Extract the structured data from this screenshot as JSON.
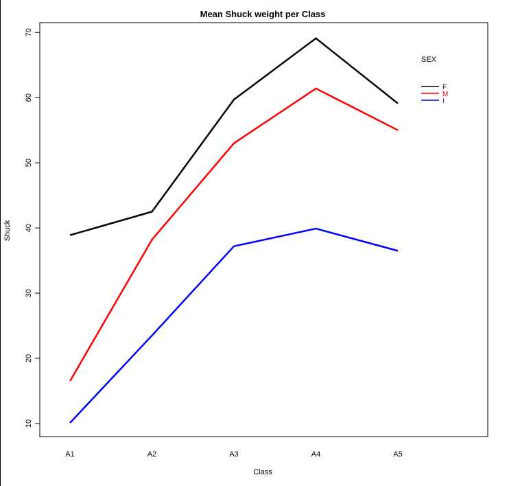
{
  "chart_data": {
    "type": "line",
    "title": "Mean Shuck weight per Class",
    "xlabel": "Class",
    "ylabel": "Shuck",
    "categories": [
      "A1",
      "A2",
      "A3",
      "A4",
      "A5"
    ],
    "ylim": [
      8,
      71.5
    ],
    "yticks": [
      10,
      20,
      30,
      40,
      50,
      60,
      70
    ],
    "grid": false,
    "legend": {
      "title": "SEX",
      "position": "top-right"
    },
    "series": [
      {
        "name": "F",
        "color": "#000000",
        "values": [
          38.9,
          42.5,
          59.7,
          69.1,
          59.1
        ]
      },
      {
        "name": "M",
        "color": "#ff0000",
        "values": [
          16.5,
          38.2,
          53.0,
          61.4,
          55.0
        ]
      },
      {
        "name": "I",
        "color": "#0000ff",
        "values": [
          10.1,
          23.5,
          37.2,
          39.9,
          36.5
        ]
      }
    ]
  }
}
